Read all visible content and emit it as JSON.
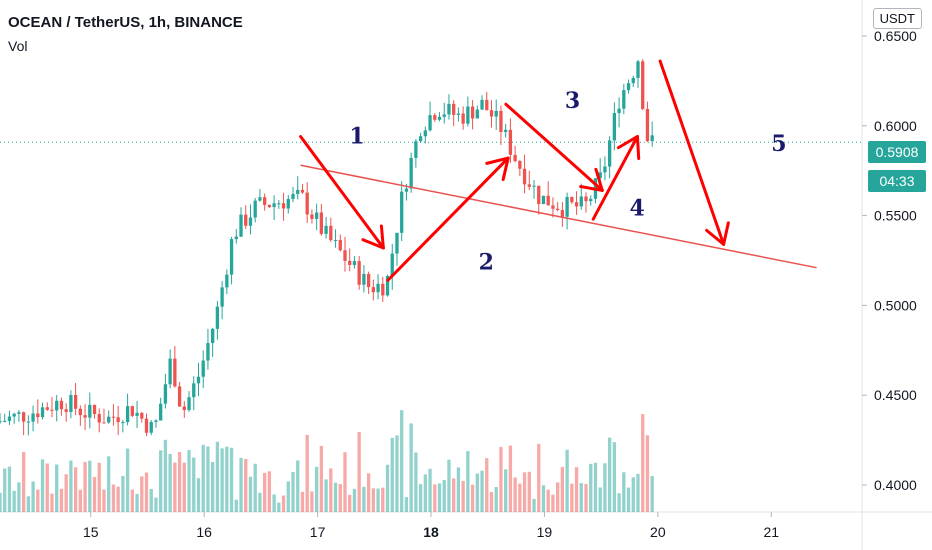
{
  "header": {
    "title": "OCEAN / TetherUS, 1h, BINANCE",
    "volume_label": "Vol"
  },
  "axis": {
    "currency": "USDT",
    "last_price": "0.5908",
    "countdown": "04:33"
  },
  "chart_data": {
    "type": "candlestick",
    "title": "OCEAN / TetherUS, 1h, BINANCE",
    "y_ticks": [
      0.4,
      0.45,
      0.5,
      0.55,
      0.6,
      0.65
    ],
    "y_tick_labels": [
      "0.4000",
      "0.4500",
      "0.5000",
      "0.5500",
      "0.6000",
      "0.6500"
    ],
    "ylim": [
      0.385,
      0.67
    ],
    "x_tick_labels": [
      "15",
      "16",
      "17",
      "18",
      "19",
      "20",
      "21"
    ],
    "x_ticks": [
      15,
      16,
      17,
      18,
      19,
      20,
      21
    ],
    "xlim": [
      14.2,
      21.8
    ],
    "last_price": 0.5908,
    "colors": {
      "up": "#26a69a",
      "down": "#ef5350",
      "annotation": "#ff0000"
    },
    "wave_labels": [
      {
        "text": "1",
        "x": 17.28,
        "y": 0.59
      },
      {
        "text": "2",
        "x": 18.42,
        "y": 0.52
      },
      {
        "text": "3",
        "x": 19.18,
        "y": 0.61
      },
      {
        "text": "4",
        "x": 19.75,
        "y": 0.55
      },
      {
        "text": "5",
        "x": 21.0,
        "y": 0.586
      }
    ],
    "arrows": [
      {
        "from": [
          16.85,
          0.594
        ],
        "to": [
          17.58,
          0.532
        ]
      },
      {
        "from": [
          17.62,
          0.514
        ],
        "to": [
          18.68,
          0.582
        ]
      },
      {
        "from": [
          18.66,
          0.612
        ],
        "to": [
          19.51,
          0.564
        ]
      },
      {
        "from": [
          19.43,
          0.548
        ],
        "to": [
          19.82,
          0.594
        ]
      },
      {
        "from": [
          20.02,
          0.636
        ],
        "to": [
          20.58,
          0.534
        ]
      }
    ],
    "trendline": {
      "from": [
        16.85,
        0.578
      ],
      "to": [
        21.4,
        0.521
      ]
    },
    "volume": {
      "ylim": [
        0,
        1
      ],
      "note": "relative volumes per hour"
    }
  }
}
